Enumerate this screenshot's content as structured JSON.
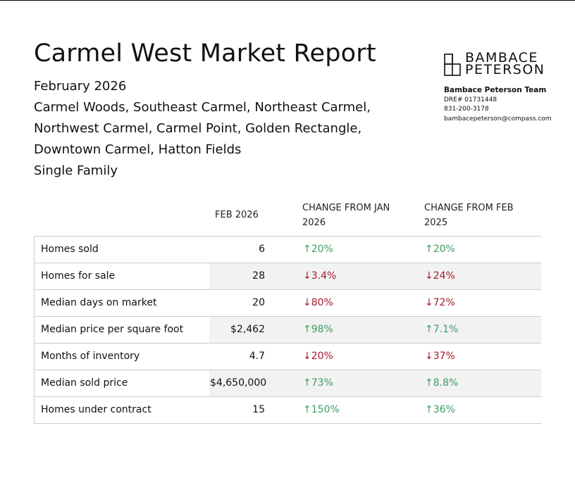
{
  "header": {
    "title": "Carmel West Market Report",
    "subtitle_lines": [
      "February 2026",
      "Carmel Woods, Southeast Carmel, Northeast Carmel,",
      "Northwest Carmel, Carmel Point, Golden Rectangle,",
      "Downtown Carmel, Hatton Fields",
      "Single Family"
    ]
  },
  "brand": {
    "logo_lines": [
      "BAMBACE",
      "PETERSON"
    ],
    "team": "Bambace Peterson Team",
    "dre": "DRE# 01731448",
    "phone": "831-200-3178",
    "email": "bambacepeterson@compass.com"
  },
  "table": {
    "columns": [
      "FEB 2026",
      "CHANGE FROM JAN 2026",
      "CHANGE FROM FEB 2025"
    ],
    "rows": [
      [
        "Homes sold",
        "6",
        "↑20%",
        "↑20%"
      ],
      [
        "Homes for sale",
        "28",
        "↓3.4%",
        "↓24%"
      ],
      [
        "Median days on market",
        "20",
        "↓80%",
        "↓72%"
      ],
      [
        "Median price per square foot",
        "$2,462",
        "↑98%",
        "↑7.1%"
      ],
      [
        "Months of inventory",
        "4.7",
        "↓20%",
        "↓37%"
      ],
      [
        "Median sold price",
        "$4,650,000",
        "↑73%",
        "↑8.8%"
      ],
      [
        "Homes under contract",
        "15",
        "↑150%",
        "↑36%"
      ]
    ]
  }
}
